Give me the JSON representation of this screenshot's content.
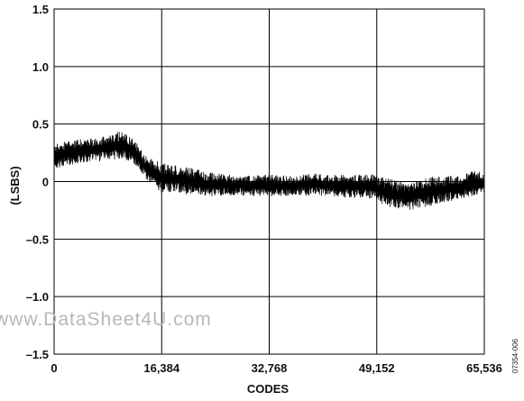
{
  "chart_data": {
    "type": "line",
    "title": "",
    "xlabel": "CODES",
    "ylabel": "(LSBS)",
    "xlim": [
      0,
      65536
    ],
    "ylim": [
      -1.5,
      1.5
    ],
    "grid": true,
    "x_ticks": [
      0,
      16384,
      32768,
      49152,
      65536
    ],
    "x_tick_labels": [
      "0",
      "16,384",
      "32,768",
      "49,152",
      "65,536"
    ],
    "y_ticks": [
      1.5,
      1.0,
      0.5,
      0,
      -0.5,
      -1.0,
      -1.5
    ],
    "y_tick_labels": [
      "1.5",
      "1.0",
      "0.5",
      "0",
      "–0.5",
      "–1.0",
      "–1.5"
    ],
    "series": [
      {
        "color": "#000000",
        "envelope_upper": {
          "x": [
            0,
            2000,
            4000,
            6000,
            8000,
            10000,
            12000,
            14000,
            16384,
            18000,
            20000,
            24000,
            28000,
            32768,
            36000,
            40000,
            44000,
            48000,
            50000,
            52000,
            54000,
            56000,
            58000,
            60000,
            62000,
            64000,
            65536
          ],
          "y": [
            0.33,
            0.35,
            0.37,
            0.38,
            0.4,
            0.44,
            0.38,
            0.22,
            0.16,
            0.15,
            0.13,
            0.08,
            0.05,
            0.06,
            0.05,
            0.07,
            0.06,
            0.07,
            0.04,
            0.01,
            -0.01,
            0.02,
            0.05,
            0.05,
            0.06,
            0.1,
            0.08
          ]
        },
        "envelope_lower": {
          "x": [
            0,
            2000,
            4000,
            6000,
            8000,
            10000,
            12000,
            14000,
            16384,
            18000,
            20000,
            24000,
            28000,
            32768,
            36000,
            40000,
            44000,
            48000,
            50000,
            52000,
            54000,
            56000,
            58000,
            60000,
            62000,
            64000,
            65536
          ],
          "y": [
            0.1,
            0.14,
            0.16,
            0.17,
            0.18,
            0.2,
            0.17,
            0.02,
            -0.1,
            -0.1,
            -0.11,
            -0.13,
            -0.12,
            -0.13,
            -0.13,
            -0.12,
            -0.14,
            -0.15,
            -0.2,
            -0.24,
            -0.25,
            -0.23,
            -0.2,
            -0.18,
            -0.15,
            -0.12,
            -0.1
          ]
        }
      }
    ]
  },
  "annotations": {
    "figure_id": "07354-006",
    "watermark": "www.DataSheet4U.com"
  }
}
